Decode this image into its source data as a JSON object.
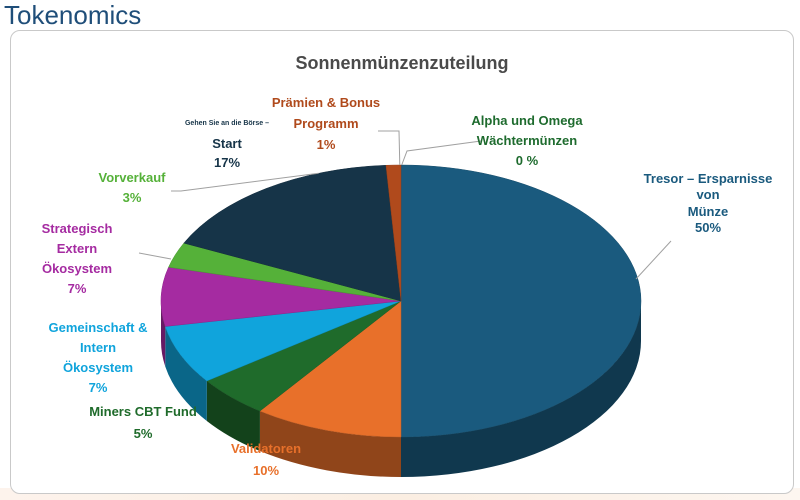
{
  "header": {
    "title": "Tokenomics"
  },
  "chart_data": {
    "type": "pie",
    "title": "Sonnenmünzenzuteilung",
    "slices": [
      {
        "label_lines": [
          "Tresor – Ersparnisse von",
          "Münze"
        ],
        "value": 50,
        "value_label": "50%",
        "color": "#1a5a7e"
      },
      {
        "label_lines": [
          "Validatoren"
        ],
        "value": 10,
        "value_label": "10%",
        "color": "#e8702a"
      },
      {
        "label_lines": [
          "Miners CBT Fund"
        ],
        "value": 5,
        "value_label": "5%",
        "color": "#1f6b2b"
      },
      {
        "label_lines": [
          "Gemeinschaft &",
          "Intern",
          "Ökosystem"
        ],
        "value": 7,
        "value_label": "7%",
        "color": "#10a4dc"
      },
      {
        "label_lines": [
          "Strategisch",
          "Extern",
          "Ökosystem"
        ],
        "value": 7,
        "value_label": "7%",
        "color": "#a52ba1"
      },
      {
        "label_lines": [
          "Vorverkauf"
        ],
        "value": 3,
        "value_label": "3%",
        "color": "#55b139"
      },
      {
        "label_lines": [
          "Gehen Sie an die Börse –",
          "Start"
        ],
        "value": 17,
        "value_label": "17%",
        "color": "#163448"
      },
      {
        "label_lines": [
          "Prämien & Bonus",
          "Programm"
        ],
        "value": 1,
        "value_label": "1%",
        "color": "#b04a1c"
      },
      {
        "label_lines": [
          "Alpha und Omega",
          "Wächtermünzen"
        ],
        "value": 0,
        "value_label": "0 %",
        "color": "#1e6b2e"
      }
    ]
  }
}
